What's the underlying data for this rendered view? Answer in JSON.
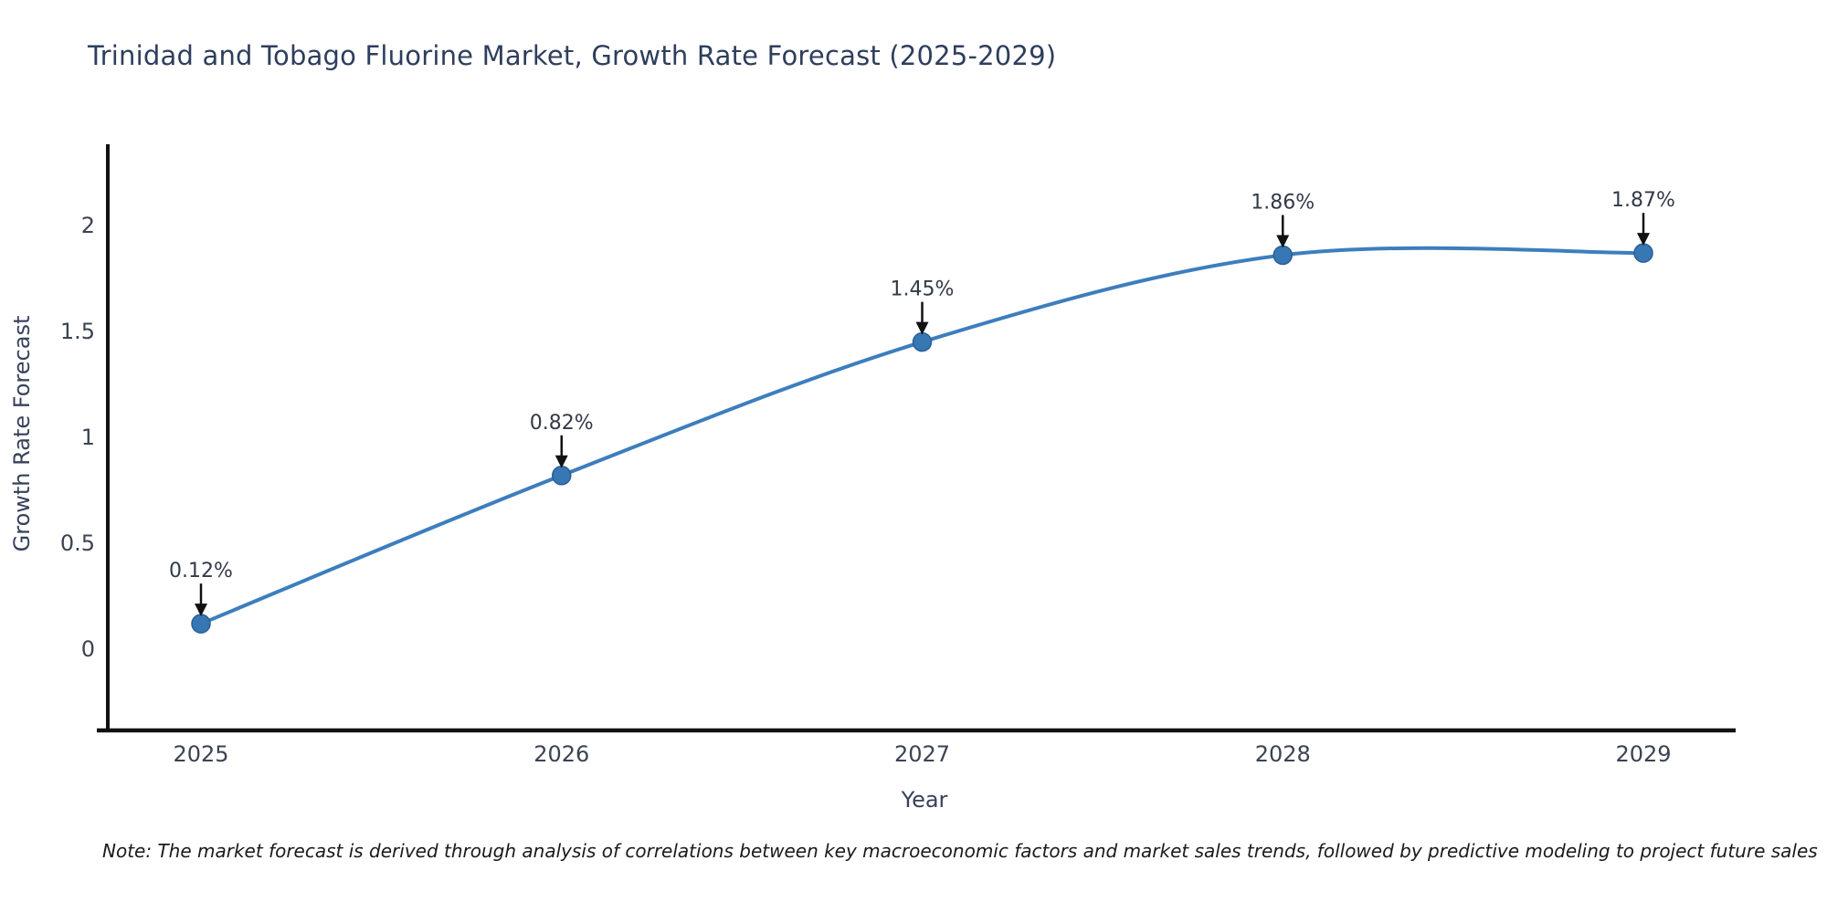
{
  "chart_data": {
    "type": "line",
    "title": "Trinidad and Tobago Fluorine Market, Growth Rate Forecast (2025-2029)",
    "xlabel": "Year",
    "ylabel": "Growth Rate Forecast",
    "x": [
      2025,
      2026,
      2027,
      2028,
      2029
    ],
    "x_tick_labels": [
      "2025",
      "2026",
      "2027",
      "2028",
      "2029"
    ],
    "series": [
      {
        "name": "Growth Rate Forecast",
        "values": [
          0.12,
          0.82,
          1.45,
          1.86,
          1.87
        ]
      }
    ],
    "point_labels": [
      "0.12%",
      "0.82%",
      "1.45%",
      "1.86%",
      "1.87%"
    ],
    "yticks": [
      0,
      0.5,
      1,
      1.5,
      2
    ],
    "ytick_labels": [
      "0",
      "0.5",
      "1",
      "1.5",
      "2"
    ],
    "ylim": [
      -0.39,
      2.38
    ],
    "grid": false,
    "legend": "none",
    "curve": "spline",
    "annotation_style": "down-arrow",
    "colors": {
      "line": "#3d7ebd",
      "marker": "#3777b3",
      "marker_edge": "#2b5f95",
      "annotation_arrow": "#111111",
      "axis_line": "#111111",
      "title_text": "#2e3e5c",
      "tick_text": "#3b4352",
      "note_text": "#1a1a1a",
      "background": "#ffffff"
    },
    "note": "Note: The market forecast is derived through analysis of correlations between key macroeconomic factors and market sales trends, followed by predictive modeling to project future sales"
  }
}
